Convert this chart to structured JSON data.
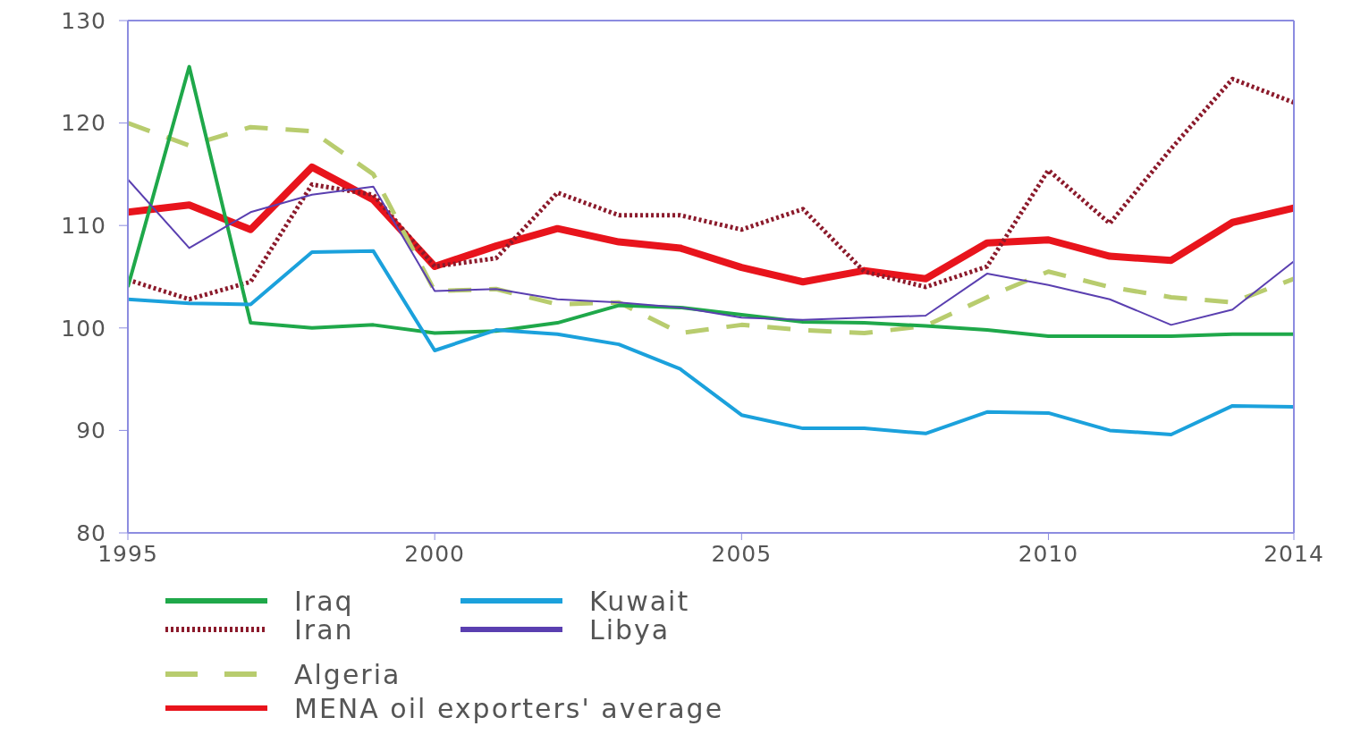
{
  "chart_data": {
    "type": "line",
    "x": [
      1995,
      1996,
      1997,
      1998,
      1999,
      2000,
      2001,
      2002,
      2003,
      2004,
      2005,
      2006,
      2007,
      2008,
      2009,
      2010,
      2011,
      2012,
      2013,
      2014
    ],
    "xlim": [
      1995,
      2014
    ],
    "xticks": [
      1995,
      2000,
      2005,
      2010,
      2014
    ],
    "ylim": [
      80,
      130
    ],
    "yticks": [
      80,
      90,
      100,
      110,
      120,
      130
    ],
    "grid": false,
    "legend": "bottom",
    "marker": "none",
    "series": [
      {
        "name": "Iraq",
        "color": "#1fa84a",
        "line_style": "solid",
        "values": [
          104,
          125.5,
          100.5,
          100,
          100.3,
          99.5,
          99.7,
          100.5,
          102.2,
          102,
          101.3,
          100.6,
          100.5,
          100.2,
          99.8,
          99.2,
          99.2,
          99.2,
          99.4,
          99.4
        ]
      },
      {
        "name": "Kuwait",
        "color": "#1ba1dc",
        "line_style": "solid",
        "values": [
          102.8,
          102.4,
          102.3,
          107.4,
          107.5,
          97.8,
          99.8,
          99.4,
          98.4,
          96,
          91.5,
          90.2,
          90.2,
          89.7,
          91.8,
          91.7,
          90,
          89.6,
          92.4,
          92.3
        ]
      },
      {
        "name": "Iran",
        "color": "#8b1a2b",
        "line_style": "dotted",
        "values": [
          104.7,
          102.8,
          104.5,
          114,
          113,
          106,
          106.8,
          113.2,
          111,
          111,
          109.6,
          111.6,
          105.5,
          104,
          106,
          115.4,
          110.2,
          117.5,
          124.3,
          122
        ]
      },
      {
        "name": "Libya",
        "color": "#5a3fb0",
        "line_style": "solid",
        "values": [
          114.5,
          107.8,
          111.3,
          113,
          113.8,
          103.6,
          103.8,
          102.8,
          102.5,
          102,
          101,
          100.8,
          101,
          101.2,
          105.3,
          104.2,
          102.8,
          100.3,
          101.8,
          106.5
        ]
      },
      {
        "name": "Algeria",
        "color": "#b8cc6e",
        "line_style": "dashed",
        "values": [
          120,
          117.8,
          119.6,
          119.2,
          115,
          103.6,
          103.8,
          102.3,
          102.5,
          99.5,
          100.3,
          99.8,
          99.5,
          100.2,
          103,
          105.5,
          104,
          103,
          102.5,
          104.8
        ]
      },
      {
        "name": "MENA oil exporters' average",
        "color": "#e8141c",
        "line_style": "solid",
        "values": [
          111.3,
          112,
          109.6,
          115.7,
          112.5,
          106,
          108,
          109.7,
          108.4,
          107.8,
          105.9,
          104.5,
          105.6,
          104.8,
          108.3,
          108.6,
          107,
          106.6,
          110.3,
          111.7
        ]
      }
    ]
  }
}
